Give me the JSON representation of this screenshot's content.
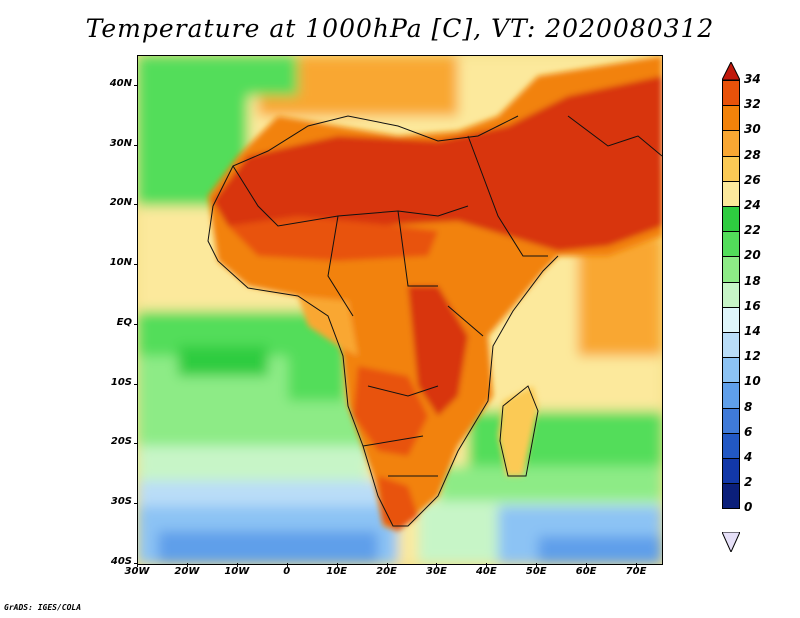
{
  "title": "Temperature at 1000hPa [C], VT: 2020080312",
  "footer": "GrADS: IGES/COLA",
  "lat_labels": [
    "40N",
    "30N",
    "20N",
    "10N",
    "EQ",
    "10S",
    "20S",
    "30S",
    "40S"
  ],
  "lon_labels": [
    "30W",
    "20W",
    "10W",
    "0",
    "10E",
    "20E",
    "30E",
    "40E",
    "50E",
    "60E",
    "70E"
  ],
  "colorbar": {
    "labels": [
      "34",
      "32",
      "30",
      "28",
      "26",
      "24",
      "22",
      "20",
      "18",
      "16",
      "14",
      "12",
      "10",
      "8",
      "6",
      "4",
      "2",
      "0"
    ],
    "colors": [
      "#d8340f",
      "#e8520a",
      "#f2820a",
      "#f9a733",
      "#fbca55",
      "#fce99c",
      "#2ecc40",
      "#52dd5a",
      "#8deb86",
      "#c7f5c7",
      "#dff6fb",
      "#b9ddf8",
      "#8cc3f4",
      "#5f9fea",
      "#3f7ad8",
      "#2258c4",
      "#1238a8",
      "#0b1f7a"
    ]
  },
  "chart_data": {
    "type": "heatmap",
    "title": "Temperature at 1000hPa [C], VT: 2020080312",
    "x_range": [
      -30,
      75
    ],
    "y_range": [
      -40,
      45
    ],
    "x_ticks": [
      "30W",
      "20W",
      "10W",
      "0",
      "10E",
      "20E",
      "30E",
      "40E",
      "50E",
      "60E",
      "70E"
    ],
    "y_ticks": [
      "40N",
      "30N",
      "20N",
      "10N",
      "EQ",
      "10S",
      "20S",
      "30S",
      "40S"
    ],
    "colorbar_range": [
      0,
      34
    ],
    "colorbar_step": 2
  }
}
